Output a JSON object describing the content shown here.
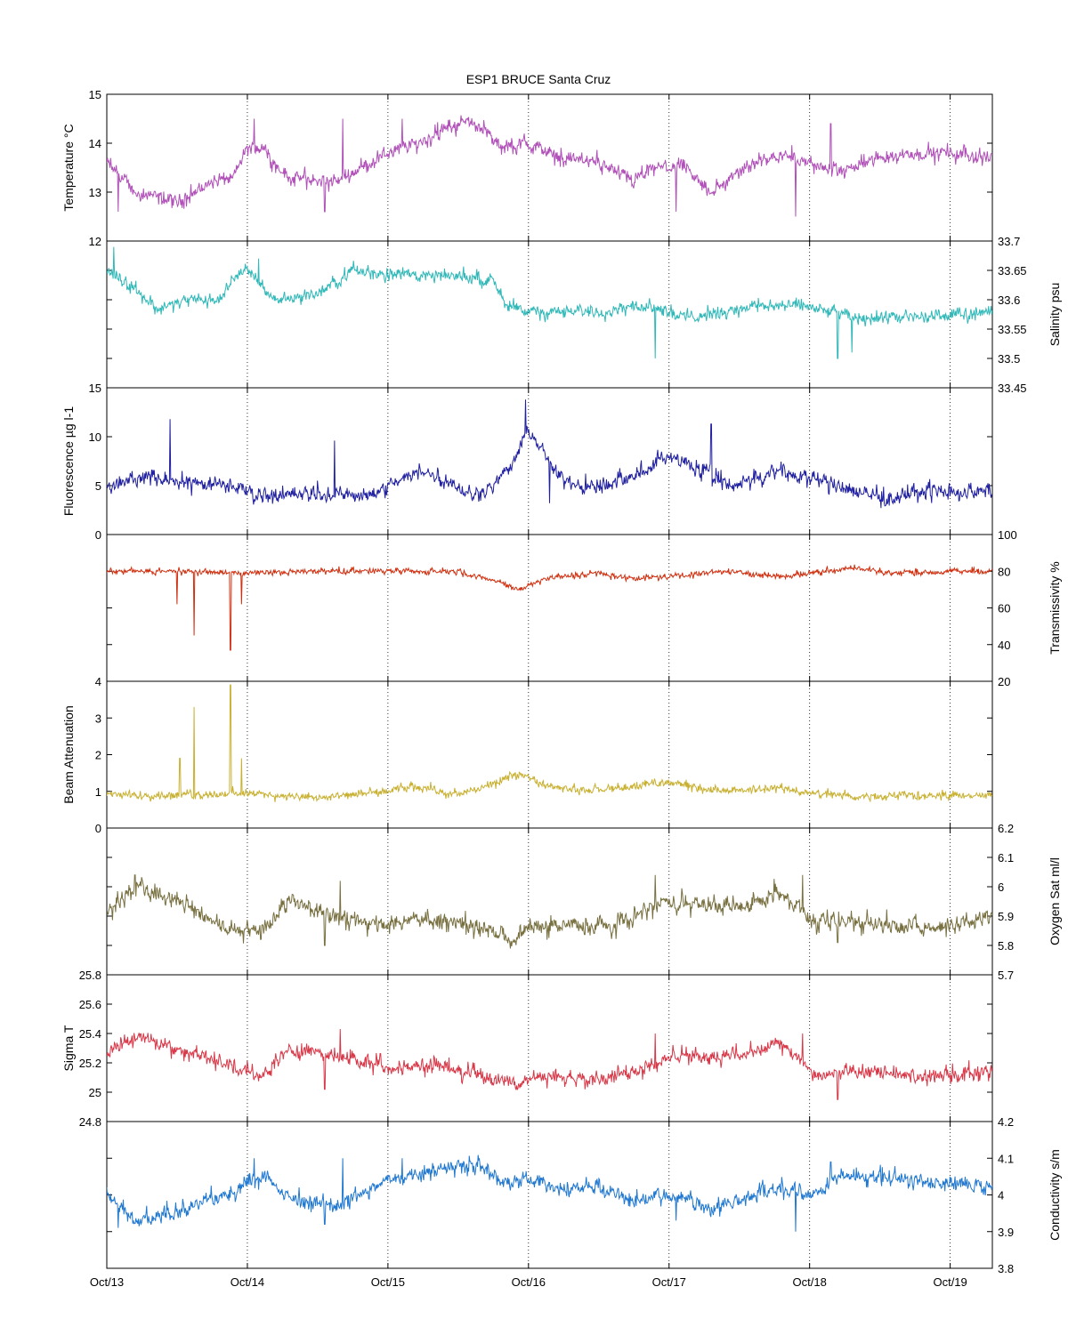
{
  "chart_data": {
    "type": "line",
    "title": "ESP1 BRUCE Santa Cruz",
    "x_range": [
      "Oct/13",
      "Oct/19 06:00"
    ],
    "x_tick_labels": [
      "Oct/13",
      "Oct/14",
      "Oct/15",
      "Oct/16",
      "Oct/17",
      "Oct/18",
      "Oct/19"
    ],
    "x_day_span": 6.3,
    "grid": "vertical dotted lines at day ticks",
    "panels": [
      {
        "ylabel": "Temperature °C",
        "side": "left",
        "color": "#b050b8",
        "ylim": [
          12,
          15
        ],
        "yticks": [
          12,
          13,
          14,
          15
        ],
        "minor_ticks": [],
        "series": {
          "day": [
            0,
            0.2,
            0.5,
            0.75,
            0.9,
            1,
            1.1,
            1.3,
            1.6,
            1.75,
            2,
            2.2,
            2.5,
            2.65,
            2.8,
            3,
            3.15,
            3.25,
            3.5,
            3.75,
            3.9,
            4.1,
            4.3,
            4.6,
            4.8,
            5,
            5.2,
            5.5,
            5.8,
            6,
            6.3
          ],
          "value": [
            13.6,
            13.0,
            12.8,
            13.2,
            13.3,
            13.9,
            13.9,
            13.3,
            13.2,
            13.4,
            13.8,
            14.0,
            14.4,
            14.4,
            13.9,
            14.0,
            13.8,
            13.7,
            13.6,
            13.2,
            13.5,
            13.5,
            13.0,
            13.6,
            13.8,
            13.6,
            13.4,
            13.7,
            13.8,
            13.8,
            13.7
          ]
        },
        "noise": 0.35,
        "spikes": [
          [
            0.08,
            12.6
          ],
          [
            1.05,
            14.5
          ],
          [
            1.55,
            12.6
          ],
          [
            1.68,
            14.5
          ],
          [
            2.1,
            14.5
          ],
          [
            4.05,
            12.6
          ],
          [
            4.9,
            12.5
          ],
          [
            5.15,
            14.4
          ]
        ]
      },
      {
        "ylabel": "Salinity psu",
        "side": "right",
        "color": "#30b8b8",
        "ylim": [
          33.45,
          33.7
        ],
        "yticks": [
          33.45,
          33.5,
          33.55,
          33.6,
          33.65,
          33.7
        ],
        "minor_ticks": [],
        "series": {
          "day": [
            0,
            0.2,
            0.35,
            0.6,
            0.8,
            0.9,
            1,
            1.2,
            1.5,
            1.75,
            2,
            2.4,
            2.5,
            2.75,
            2.85,
            3,
            3.3,
            3.5,
            3.75,
            3.9,
            4.1,
            4.3,
            4.6,
            4.8,
            5,
            5.3,
            5.6,
            5.85,
            6,
            6.3
          ],
          "value": [
            33.65,
            33.62,
            33.585,
            33.6,
            33.6,
            33.64,
            33.65,
            33.6,
            33.61,
            33.65,
            33.645,
            33.64,
            33.64,
            33.635,
            33.585,
            33.58,
            33.58,
            33.58,
            33.59,
            33.59,
            33.57,
            33.575,
            33.59,
            33.59,
            33.59,
            33.57,
            33.57,
            33.57,
            33.575,
            33.58
          ]
        },
        "noise": 0.025,
        "spikes": [
          [
            0.05,
            33.69
          ],
          [
            1.08,
            33.67
          ],
          [
            3.9,
            33.5
          ],
          [
            5.2,
            33.5
          ],
          [
            5.3,
            33.51
          ]
        ]
      },
      {
        "ylabel": "Fluorescence µg l-1",
        "side": "left",
        "color": "#2020a0",
        "ylim": [
          0,
          15
        ],
        "yticks": [
          0,
          5,
          10,
          15
        ],
        "minor_ticks": [],
        "series": {
          "day": [
            0,
            0.3,
            0.5,
            0.9,
            1.1,
            1.5,
            1.9,
            2.05,
            2.25,
            2.6,
            2.75,
            2.9,
            3.0,
            3.2,
            3.4,
            3.55,
            3.75,
            4.0,
            4.15,
            4.45,
            4.8,
            5.0,
            5.3,
            5.55,
            5.85,
            6.0,
            6.3
          ],
          "value": [
            5,
            6,
            5.5,
            5,
            4,
            4.2,
            4,
            5.5,
            6.5,
            4.2,
            5,
            7.5,
            11,
            6,
            5,
            5,
            6,
            8,
            7,
            5,
            6.5,
            5.8,
            4.5,
            3.6,
            4.6,
            4.2,
            4.4
          ]
        },
        "noise": 1.8,
        "spikes": [
          [
            0.45,
            11.8
          ],
          [
            1.62,
            9.6
          ],
          [
            2.98,
            13.8
          ],
          [
            3.15,
            3.2
          ],
          [
            4.3,
            11.3
          ]
        ]
      },
      {
        "ylabel": "Transmissivity %",
        "side": "right",
        "color": "#d03010",
        "ylim": [
          20,
          100
        ],
        "yticks": [
          20,
          40,
          60,
          80,
          100
        ],
        "minor_ticks": [],
        "series": {
          "day": [
            0,
            0.5,
            1,
            1.5,
            2,
            2.5,
            2.75,
            2.95,
            3.1,
            3.4,
            3.5,
            3.7,
            4,
            4.4,
            4.8,
            5.0,
            5.3,
            5.6,
            6,
            6.3
          ],
          "value": [
            80,
            80,
            79,
            80,
            80,
            80,
            75,
            70,
            76,
            78,
            79,
            76,
            77,
            80,
            77,
            79,
            82,
            79,
            80,
            80
          ]
        },
        "noise": 3.5,
        "spikes": [
          [
            0.5,
            62
          ],
          [
            0.62,
            45
          ],
          [
            0.88,
            37
          ],
          [
            0.96,
            62
          ]
        ]
      },
      {
        "ylabel": "Beam Attenuation",
        "side": "left",
        "color": "#c8b030",
        "ylim": [
          0,
          4
        ],
        "yticks": [
          0,
          1,
          2,
          3,
          4
        ],
        "minor_ticks": [],
        "series": {
          "day": [
            0,
            0.5,
            1,
            1.5,
            2,
            2.2,
            2.5,
            2.75,
            2.95,
            3.1,
            3.4,
            3.7,
            4,
            4.4,
            4.8,
            5.0,
            5.3,
            5.6,
            6,
            6.3
          ],
          "value": [
            0.9,
            0.9,
            0.95,
            0.8,
            1.0,
            1.15,
            0.9,
            1.2,
            1.5,
            1.2,
            1.0,
            1.1,
            1.25,
            1.0,
            1.1,
            0.95,
            0.85,
            0.9,
            0.88,
            0.88
          ]
        },
        "noise": 0.25,
        "spikes": [
          [
            0.52,
            1.9
          ],
          [
            0.62,
            3.3
          ],
          [
            0.88,
            3.9
          ],
          [
            0.96,
            1.9
          ]
        ]
      },
      {
        "ylabel": "Oxygen Sat ml/l",
        "side": "right",
        "color": "#787040",
        "ylim": [
          5.7,
          6.2
        ],
        "yticks": [
          5.7,
          5.8,
          5.9,
          6,
          6.1,
          6.2
        ],
        "minor_ticks": [],
        "series": {
          "day": [
            0,
            0.2,
            0.5,
            0.85,
            1.1,
            1.3,
            1.6,
            1.9,
            2.1,
            2.4,
            2.7,
            2.9,
            3.0,
            3.3,
            3.6,
            3.75,
            3.9,
            4.1,
            4.5,
            4.8,
            5.05,
            5.3,
            5.6,
            5.85,
            6.0,
            6.3
          ],
          "value": [
            5.91,
            6.0,
            5.95,
            5.86,
            5.85,
            5.96,
            5.9,
            5.87,
            5.88,
            5.89,
            5.85,
            5.82,
            5.86,
            5.87,
            5.86,
            5.9,
            5.94,
            5.95,
            5.93,
            5.99,
            5.87,
            5.88,
            5.87,
            5.86,
            5.87,
            5.9
          ]
        },
        "noise": 0.07,
        "spikes": [
          [
            0.2,
            6.04
          ],
          [
            1.55,
            5.8
          ],
          [
            1.66,
            6.02
          ],
          [
            3.9,
            6.04
          ],
          [
            4.95,
            6.04
          ],
          [
            5.2,
            5.81
          ]
        ]
      },
      {
        "ylabel": "Sigma T",
        "side": "left",
        "color": "#d83848",
        "ylim": [
          24.8,
          25.8
        ],
        "yticks": [
          24.8,
          25,
          25.2,
          25.4,
          25.6,
          25.8
        ],
        "minor_ticks": [],
        "series": {
          "day": [
            0,
            0.2,
            0.5,
            0.85,
            1.1,
            1.3,
            1.6,
            1.9,
            2.1,
            2.4,
            2.7,
            2.9,
            3.0,
            3.3,
            3.6,
            3.75,
            3.9,
            4.1,
            4.5,
            4.8,
            5.05,
            5.3,
            5.6,
            5.85,
            6.0,
            6.3
          ],
          "value": [
            25.25,
            25.38,
            25.3,
            25.2,
            25.1,
            25.3,
            25.25,
            25.2,
            25.17,
            25.18,
            25.1,
            25.05,
            25.1,
            25.1,
            25.1,
            25.15,
            25.2,
            25.25,
            25.25,
            25.33,
            25.1,
            25.15,
            25.12,
            25.1,
            25.12,
            25.15
          ]
        },
        "noise": 0.12,
        "spikes": [
          [
            1.55,
            25.02
          ],
          [
            1.66,
            25.43
          ],
          [
            3.9,
            25.4
          ],
          [
            4.95,
            25.4
          ],
          [
            5.2,
            24.95
          ]
        ]
      },
      {
        "ylabel": "Conductivity s/m",
        "side": "right",
        "color": "#2078d0",
        "ylim": [
          3.8,
          4.2
        ],
        "yticks": [
          3.8,
          3.9,
          4,
          4.1,
          4.2
        ],
        "minor_ticks": [],
        "series": {
          "day": [
            0,
            0.2,
            0.5,
            0.75,
            0.9,
            1,
            1.1,
            1.3,
            1.6,
            1.75,
            2,
            2.2,
            2.5,
            2.65,
            2.8,
            3,
            3.15,
            3.25,
            3.5,
            3.75,
            3.9,
            4.1,
            4.3,
            4.6,
            4.8,
            5,
            5.2,
            5.5,
            5.8,
            6,
            6.3
          ],
          "value": [
            4.01,
            3.93,
            3.95,
            3.99,
            4.0,
            4.04,
            4.05,
            3.99,
            3.97,
            3.99,
            4.04,
            4.06,
            4.08,
            4.08,
            4.03,
            4.04,
            4.03,
            4.02,
            4.02,
            3.98,
            4.0,
            4.0,
            3.96,
            4.0,
            4.02,
            4.0,
            4.05,
            4.05,
            4.04,
            4.03,
            4.02
          ]
        },
        "noise": 0.05,
        "spikes": [
          [
            0.08,
            3.91
          ],
          [
            1.05,
            4.1
          ],
          [
            1.55,
            3.92
          ],
          [
            1.68,
            4.1
          ],
          [
            2.1,
            4.1
          ],
          [
            4.05,
            3.93
          ],
          [
            4.9,
            3.9
          ],
          [
            5.15,
            4.09
          ]
        ]
      }
    ]
  }
}
